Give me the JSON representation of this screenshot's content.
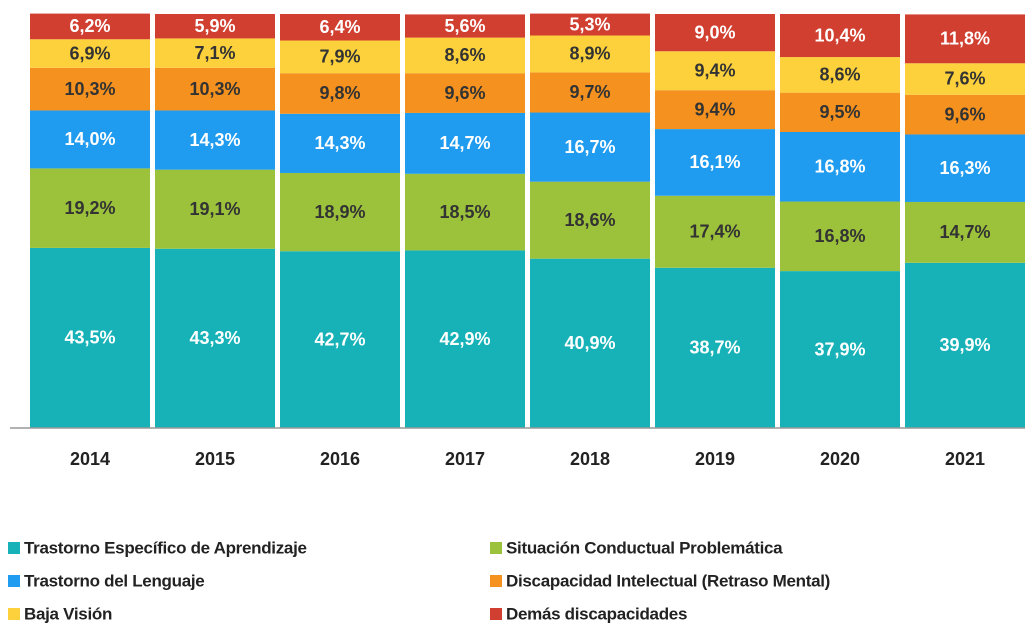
{
  "chart_data": {
    "type": "stacked_bar",
    "categories": [
      "2014",
      "2015",
      "2016",
      "2017",
      "2018",
      "2019",
      "2020",
      "2021"
    ],
    "ylim": [
      0,
      100
    ],
    "series": [
      {
        "name": "Trastorno Específico de Aprendizaje",
        "color": "#17b2b7",
        "values": [
          43.5,
          43.3,
          42.7,
          42.9,
          40.9,
          38.7,
          37.9,
          39.9
        ],
        "value_labels": [
          "43,5%",
          "43,3%",
          "42,7%",
          "42,9%",
          "40,9%",
          "38,7%",
          "37,9%",
          "39,9%"
        ]
      },
      {
        "name": "Situación Conductual Problemática",
        "color": "#9cc23c",
        "values": [
          19.2,
          19.1,
          18.9,
          18.5,
          18.6,
          17.4,
          16.8,
          14.7
        ],
        "value_labels": [
          "19,2%",
          "19,1%",
          "18,9%",
          "18,5%",
          "18,6%",
          "17,4%",
          "16,8%",
          "14,7%"
        ]
      },
      {
        "name": "Trastorno del Lenguaje",
        "color": "#1f9bef",
        "values": [
          14.0,
          14.3,
          14.3,
          14.7,
          16.7,
          16.1,
          16.8,
          16.3
        ],
        "value_labels": [
          "14,0%",
          "14,3%",
          "14,3%",
          "14,7%",
          "16,7%",
          "16,1%",
          "16,8%",
          "16,3%"
        ]
      },
      {
        "name": "Discapacidad Intelectual (Retraso Mental)",
        "color": "#f5921f",
        "values": [
          10.3,
          10.3,
          9.8,
          9.6,
          9.7,
          9.4,
          9.5,
          9.6
        ],
        "value_labels": [
          "10,3%",
          "10,3%",
          "9,8%",
          "9,6%",
          "9,7%",
          "9,4%",
          "9,5%",
          "9,6%"
        ]
      },
      {
        "name": "Baja Visión",
        "color": "#fcd13c",
        "values": [
          6.9,
          7.1,
          7.9,
          8.6,
          8.9,
          9.4,
          8.6,
          7.6
        ],
        "value_labels": [
          "6,9%",
          "7,1%",
          "7,9%",
          "8,6%",
          "8,9%",
          "9,4%",
          "8,6%",
          "7,6%"
        ]
      },
      {
        "name": "Demás discapacidades",
        "color": "#d13f30",
        "values": [
          6.2,
          5.9,
          6.4,
          5.6,
          5.3,
          9.0,
          10.4,
          11.8
        ],
        "value_labels": [
          "6,2%",
          "5,9%",
          "6,4%",
          "5,6%",
          "5,3%",
          "9,0%",
          "10,4%",
          "11,8%"
        ]
      }
    ]
  }
}
